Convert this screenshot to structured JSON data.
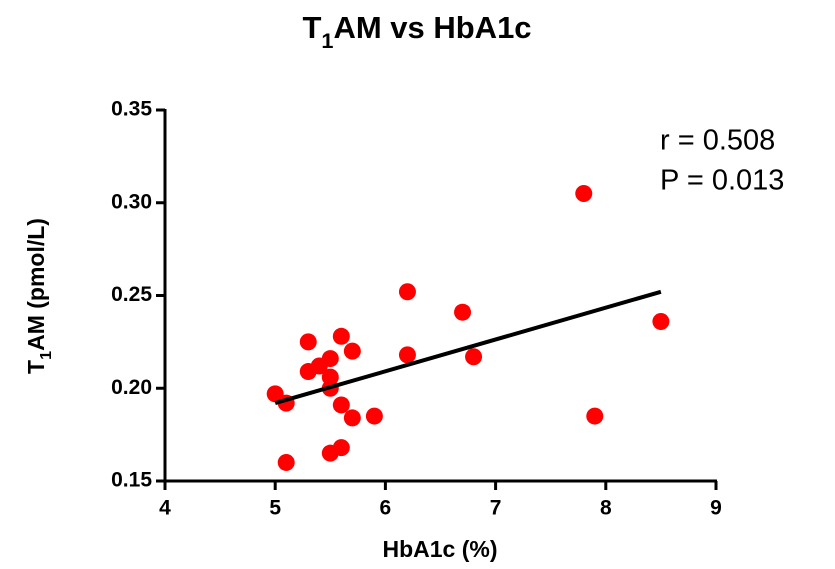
{
  "chart_data": {
    "type": "scatter",
    "title": [
      "T",
      "1",
      "AM vs HbA1c"
    ],
    "xlabel": "HbA1c (%)",
    "ylabel": [
      "T",
      "1",
      "AM (pmol/L)"
    ],
    "annotations": [
      "r  = 0.508",
      "P = 0.013"
    ],
    "series": [
      {
        "color": "#ff0000",
        "x": [
          5.0,
          5.1,
          5.1,
          5.3,
          5.3,
          5.4,
          5.5,
          5.5,
          5.5,
          5.5,
          5.6,
          5.6,
          5.6,
          5.7,
          5.7,
          5.9,
          6.2,
          6.2,
          6.7,
          6.8,
          7.8,
          7.9,
          8.5
        ],
        "values": [
          0.197,
          0.192,
          0.16,
          0.225,
          0.209,
          0.212,
          0.216,
          0.206,
          0.2,
          0.165,
          0.228,
          0.191,
          0.168,
          0.22,
          0.184,
          0.185,
          0.252,
          0.218,
          0.241,
          0.217,
          0.305,
          0.185,
          0.236
        ]
      }
    ],
    "fit_line": {
      "color": "#000000",
      "x": [
        5,
        8.5
      ],
      "values": [
        0.192,
        0.252
      ]
    },
    "xlim": [
      4,
      9
    ],
    "xticks": [
      4,
      5,
      6,
      7,
      8,
      9
    ],
    "ylim": [
      0.15,
      0.35
    ],
    "yticks": [
      0.15,
      {
        "value": 0.2,
        "label": "0.20"
      },
      0.25,
      {
        "value": 0.3,
        "label": "0.30"
      },
      0.35
    ]
  }
}
